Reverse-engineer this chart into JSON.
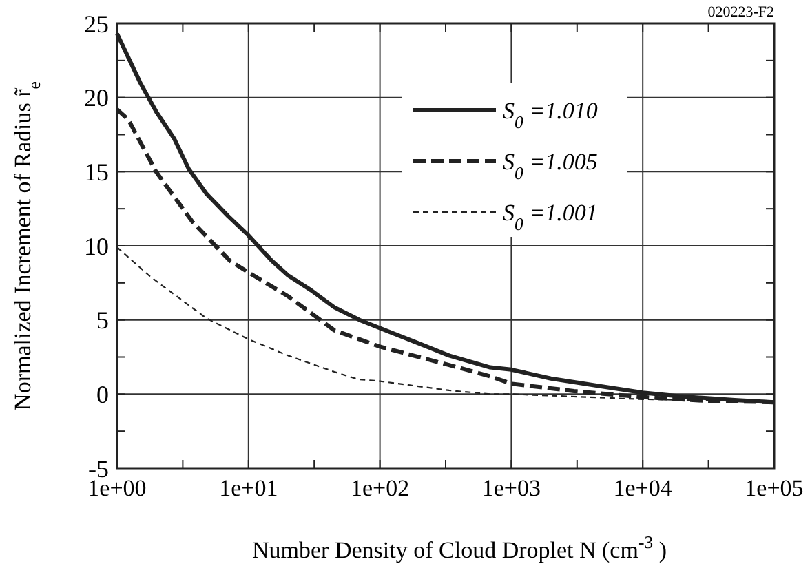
{
  "chart_data": {
    "type": "line",
    "xlabel": "Number Density of Cloud Droplet  N  (cm$^{-3}$)",
    "ylabel": "Normalized Increment of Radius r̃$_{e}$",
    "annotations": [
      "020223-F2"
    ],
    "log": "x",
    "xlim": [
      1,
      100000
    ],
    "ylim": [
      -5,
      25
    ],
    "xticks": [
      {
        "value": 1,
        "label": "1e+00"
      },
      {
        "value": 3.162,
        "label": null
      },
      {
        "value": 10,
        "label": "1e+01"
      },
      {
        "value": 31.62,
        "label": null
      },
      {
        "value": 100,
        "label": "1e+02"
      },
      {
        "value": 316.2,
        "label": null
      },
      {
        "value": 1000,
        "label": "1e+03"
      },
      {
        "value": 3162,
        "label": null
      },
      {
        "value": 10000,
        "label": "1e+04"
      },
      {
        "value": 31620,
        "label": null
      },
      {
        "value": 100000,
        "label": "1e+05"
      }
    ],
    "yticks": [
      -5,
      {
        "value": -2.5,
        "label": null
      },
      0,
      {
        "value": 2.5,
        "label": null
      },
      5,
      {
        "value": 7.5,
        "label": null
      },
      10,
      {
        "value": 12.5,
        "label": null
      },
      15,
      {
        "value": 17.5,
        "label": null
      },
      20,
      {
        "value": 22.5,
        "label": null
      },
      25
    ],
    "grid": true,
    "legend": "top right",
    "marker": "none",
    "series": [
      {
        "name": "S$_{0}$=1.010",
        "color": "#222222",
        "line_style": "solid",
        "x": [
          1,
          1.5,
          2,
          2.73,
          3.5,
          4.8,
          7,
          10,
          15,
          20,
          30,
          45,
          70,
          100,
          200,
          336,
          690,
          1000,
          2000,
          5000,
          10000,
          19000,
          50000,
          100000
        ],
        "values": [
          24.3,
          21,
          19,
          17.2,
          15.2,
          13.5,
          12,
          10.7,
          9,
          8,
          7,
          5.85,
          5,
          4.45,
          3.4,
          2.6,
          1.8,
          1.65,
          1.05,
          0.5,
          0.1,
          -0.15,
          -0.4,
          -0.55
        ]
      },
      {
        "name": "S$_{0}$=1.005",
        "color": "#222222",
        "line_style": "dashed",
        "x": [
          1,
          1.22,
          1.98,
          3.76,
          7.2,
          10,
          20,
          45,
          100,
          336,
          690,
          1000,
          3000,
          10000,
          30000,
          100000
        ],
        "values": [
          19.2,
          18.5,
          15,
          11.6,
          9,
          8.2,
          6.6,
          4.3,
          3.2,
          1.96,
          1.2,
          0.7,
          0.2,
          -0.2,
          -0.45,
          -0.55
        ]
      },
      {
        "name": "S$_{0}$=1.001",
        "color": "#222222",
        "line_style": "dotted",
        "x": [
          1,
          1.8,
          4.8,
          10,
          20,
          45,
          68,
          100,
          336,
          690,
          1000,
          10000,
          100000
        ],
        "values": [
          9.9,
          7.9,
          5.1,
          3.7,
          2.6,
          1.5,
          1.0,
          0.87,
          0.25,
          0,
          0,
          -0.35,
          -0.5
        ]
      }
    ]
  }
}
